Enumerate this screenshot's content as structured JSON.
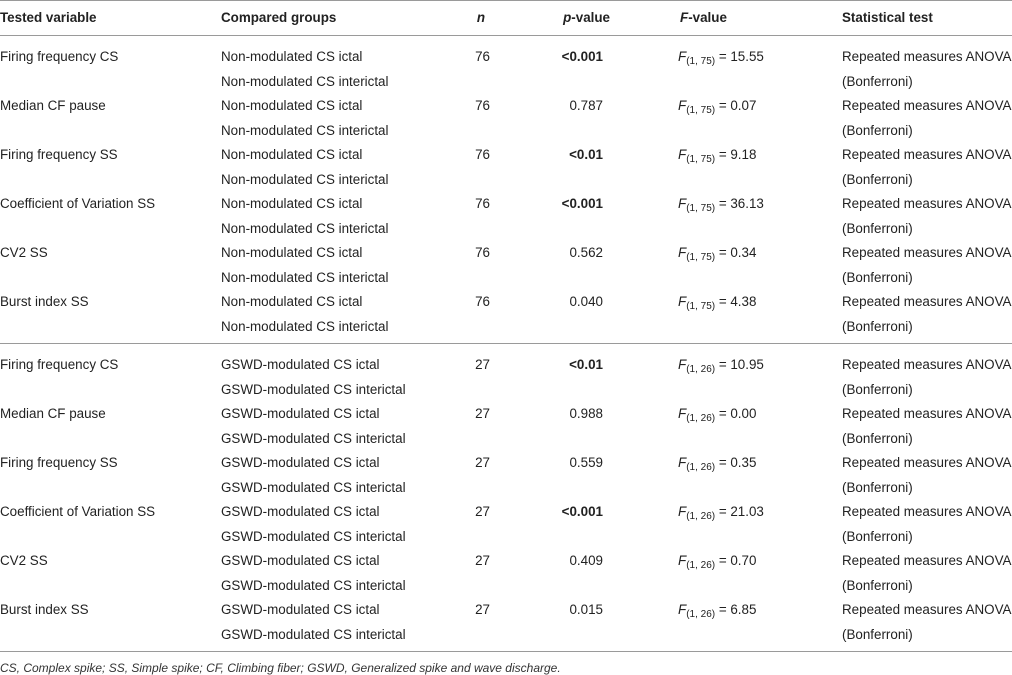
{
  "header": {
    "tested_variable": "Tested variable",
    "compared_groups": "Compared groups",
    "n": "n",
    "p_value_p": "p",
    "p_value_rest": "-value",
    "f_value_f": "F",
    "f_value_rest": "-value",
    "statistical_test": "Statistical test"
  },
  "sections": [
    {
      "rows": [
        {
          "variable": "Firing frequency CS",
          "group1": "Non-modulated CS ictal",
          "group2": "Non-modulated CS interictal",
          "n": "76",
          "p": "<0.001",
          "p_bold": true,
          "f_sub": "(1, 75)",
          "f_val": " = 15.55",
          "test1": "Repeated measures ANOVA",
          "test2": "(Bonferroni)"
        },
        {
          "variable": "Median CF pause",
          "group1": "Non-modulated CS ictal",
          "group2": "Non-modulated CS interictal",
          "n": "76",
          "p": "0.787",
          "p_bold": false,
          "f_sub": "(1, 75)",
          "f_val": " = 0.07",
          "test1": "Repeated measures ANOVA",
          "test2": "(Bonferroni)"
        },
        {
          "variable": "Firing frequency SS",
          "group1": "Non-modulated CS ictal",
          "group2": "Non-modulated CS interictal",
          "n": "76",
          "p": "<0.01",
          "p_bold": true,
          "f_sub": "(1, 75)",
          "f_val": " = 9.18",
          "test1": "Repeated measures ANOVA",
          "test2": "(Bonferroni)"
        },
        {
          "variable": "Coefficient of Variation SS",
          "group1": "Non-modulated CS ictal",
          "group2": "Non-modulated CS interictal",
          "n": "76",
          "p": "<0.001",
          "p_bold": true,
          "f_sub": "(1, 75)",
          "f_val": " = 36.13",
          "test1": "Repeated measures ANOVA",
          "test2": "(Bonferroni)"
        },
        {
          "variable": "CV2 SS",
          "group1": "Non-modulated CS ictal",
          "group2": "Non-modulated CS interictal",
          "n": "76",
          "p": "0.562",
          "p_bold": false,
          "f_sub": "(1, 75)",
          "f_val": " = 0.34",
          "test1": "Repeated measures ANOVA",
          "test2": "(Bonferroni)"
        },
        {
          "variable": "Burst index SS",
          "group1": "Non-modulated CS ictal",
          "group2": "Non-modulated CS interictal",
          "n": "76",
          "p": "0.040",
          "p_bold": false,
          "f_sub": "(1, 75)",
          "f_val": " = 4.38",
          "test1": "Repeated measures ANOVA",
          "test2": "(Bonferroni)"
        }
      ]
    },
    {
      "rows": [
        {
          "variable": "Firing frequency CS",
          "group1": "GSWD-modulated CS ictal",
          "group2": "GSWD-modulated CS interictal",
          "n": "27",
          "p": "<0.01",
          "p_bold": true,
          "f_sub": "(1, 26)",
          "f_val": " = 10.95",
          "test1": "Repeated measures ANOVA",
          "test2": "(Bonferroni)"
        },
        {
          "variable": "Median CF pause",
          "group1": "GSWD-modulated CS ictal",
          "group2": "GSWD-modulated CS interictal",
          "n": "27",
          "p": "0.988",
          "p_bold": false,
          "f_sub": "(1, 26)",
          "f_val": " = 0.00",
          "test1": "Repeated measures ANOVA",
          "test2": "(Bonferroni)"
        },
        {
          "variable": "Firing frequency SS",
          "group1": "GSWD-modulated CS ictal",
          "group2": "GSWD-modulated CS interictal",
          "n": "27",
          "p": "0.559",
          "p_bold": false,
          "f_sub": "(1, 26)",
          "f_val": " = 0.35",
          "test1": "Repeated measures ANOVA",
          "test2": "(Bonferroni)"
        },
        {
          "variable": "Coefficient of Variation SS",
          "group1": "GSWD-modulated CS ictal",
          "group2": "GSWD-modulated CS interictal",
          "n": "27",
          "p": "<0.001",
          "p_bold": true,
          "f_sub": "(1, 26)",
          "f_val": " = 21.03",
          "test1": "Repeated measures ANOVA",
          "test2": "(Bonferroni)"
        },
        {
          "variable": "CV2 SS",
          "group1": "GSWD-modulated CS ictal",
          "group2": "GSWD-modulated CS interictal",
          "n": "27",
          "p": "0.409",
          "p_bold": false,
          "f_sub": "(1, 26)",
          "f_val": " = 0.70",
          "test1": "Repeated measures ANOVA",
          "test2": "(Bonferroni)"
        },
        {
          "variable": "Burst index SS",
          "group1": "GSWD-modulated CS ictal",
          "group2": "GSWD-modulated CS interictal",
          "n": "27",
          "p": "0.015",
          "p_bold": false,
          "f_sub": "(1, 26)",
          "f_val": " = 6.85",
          "test1": "Repeated measures ANOVA",
          "test2": "(Bonferroni)"
        }
      ]
    }
  ],
  "footnote": "CS, Complex spike; SS, Simple spike; CF, Climbing fiber; GSWD, Generalized spike and wave discharge."
}
